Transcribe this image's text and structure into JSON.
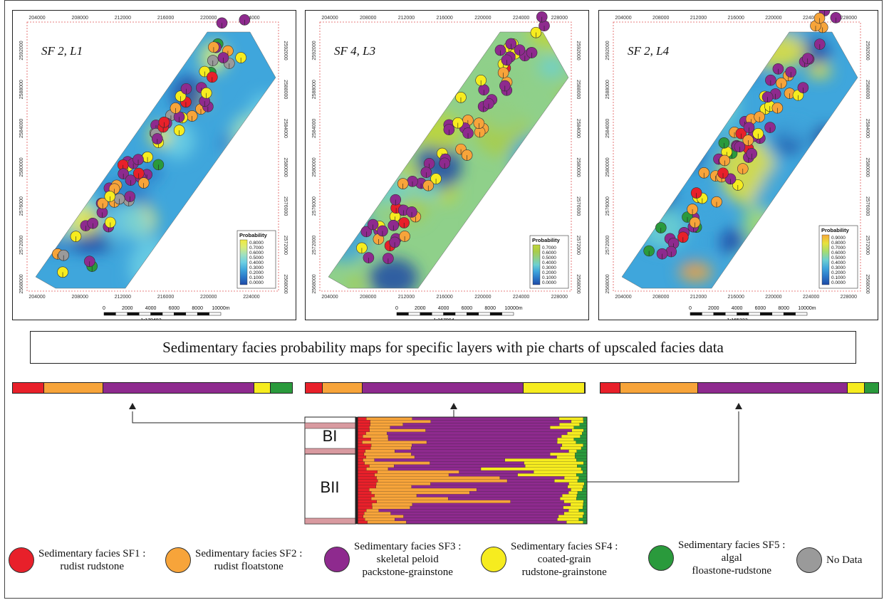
{
  "title": "Sedimentary facies probability maps for specific layers with pie charts of upscaled facies data",
  "colors": {
    "SF1": "#e8202a",
    "SF2": "#f7a43a",
    "SF3": "#8e2a8e",
    "SF4": "#f6ec1f",
    "SF5": "#2a9a3c",
    "nodata": "#9a9a9a"
  },
  "maps": [
    {
      "label": "SF 2, L1",
      "scale": "1:170482",
      "legend_title": "Probability",
      "legend_values": [
        "0.8000",
        "0.7000",
        "0.6000",
        "0.5000",
        "0.4000",
        "0.3000",
        "0.2000",
        "0.1000",
        "0.0000"
      ],
      "x_ticks": [
        "204000",
        "208000",
        "212000",
        "216000",
        "220000",
        "224000"
      ],
      "y_ticks": [
        "2592000",
        "2588000",
        "2584000",
        "2580000",
        "2576000",
        "2572000",
        "2568000"
      ],
      "scale_ticks": [
        "0",
        "2000",
        "4000",
        "6000",
        "8000",
        "10000m"
      ]
    },
    {
      "label": "SF 4, L3",
      "scale": "1:167904",
      "legend_title": "Probability",
      "legend_values": [
        "0.7000",
        "0.6000",
        "0.5000",
        "0.4000",
        "0.3000",
        "0.2000",
        "0.1000",
        "0.0000"
      ],
      "x_ticks": [
        "204000",
        "208000",
        "212000",
        "216000",
        "220000",
        "224000",
        "228000"
      ],
      "y_ticks": [
        "2592000",
        "2588000",
        "2584000",
        "2580000",
        "2576000",
        "2572000",
        "2568000"
      ],
      "scale_ticks": [
        "0",
        "2000",
        "4000",
        "6000",
        "8000",
        "10000m"
      ]
    },
    {
      "label": "SF 2, L4",
      "scale": "1:165223",
      "legend_title": "Probability",
      "legend_values": [
        "0.9000",
        "0.8000",
        "0.7000",
        "0.6000",
        "0.5000",
        "0.4000",
        "0.3000",
        "0.2000",
        "0.1000",
        "0.0000"
      ],
      "x_ticks": [
        "204000",
        "208000",
        "212000",
        "216000",
        "220000",
        "224000",
        "228000"
      ],
      "y_ticks": [
        "2592000",
        "2588000",
        "2584000",
        "2580000",
        "2576000",
        "2572000",
        "2568000"
      ],
      "scale_ticks": [
        "0",
        "2000",
        "4000",
        "6000",
        "8000",
        "10000m"
      ]
    }
  ],
  "facies_bars": [
    {
      "SF1": 0.1,
      "SF2": 0.19,
      "SF3": 0.49,
      "SF4": 0.05,
      "SF5": 0.07
    },
    {
      "SF1": 0.06,
      "SF2": 0.14,
      "SF3": 0.58,
      "SF4": 0.22,
      "SF5": 0.0
    },
    {
      "SF1": 0.07,
      "SF2": 0.28,
      "SF3": 0.54,
      "SF4": 0.06,
      "SF5": 0.05
    }
  ],
  "zones": {
    "BI": "BI",
    "BII": "BII"
  },
  "legend": [
    {
      "key": "SF1",
      "text1": "Sedimentary facies SF1 :",
      "text2": "rudist rudstone",
      "text3": ""
    },
    {
      "key": "SF2",
      "text1": "Sedimentary facies SF2 :",
      "text2": "rudist floatstone",
      "text3": ""
    },
    {
      "key": "SF3",
      "text1": "Sedimentary facies SF3 :",
      "text2": "skeletal peloid",
      "text3": "packstone-grainstone"
    },
    {
      "key": "SF4",
      "text1": "Sedimentary facies SF4 :",
      "text2": "coated-grain",
      "text3": "rudstone-grainstone"
    },
    {
      "key": "SF5",
      "text1": "Sedimentary facies SF5 :",
      "text2": "algal",
      "text3": "floastone-rudstone"
    },
    {
      "key": "nodata",
      "text1": "No Data",
      "text2": "",
      "text3": ""
    }
  ]
}
